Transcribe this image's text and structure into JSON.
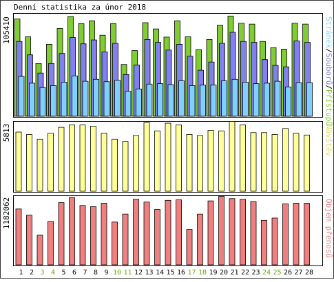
{
  "title": "Denní statistika za únor 2018",
  "colors": {
    "hits": "#80cc33",
    "files": "#8080f0",
    "pages": "#80d0ff",
    "visits": "#ffff99",
    "kbytes": "#f08080",
    "weekend_label": "#66aa00",
    "weekday_label": "#000000"
  },
  "legend": {
    "top_hits": "Přístupů",
    "top_files": "Souborů",
    "top_pages": "Stránek",
    "top_sep": "/",
    "mid": "Návštěv",
    "bottom": "Objem přenosů"
  },
  "axes": {
    "top_max_label": "105410",
    "mid_max_label": "5813",
    "bottom_max_label": "1182062"
  },
  "chart_data": {
    "type": "bar",
    "title": "Denní statistika za únor 2018",
    "categories": [
      "1",
      "2",
      "3",
      "4",
      "5",
      "6",
      "7",
      "8",
      "9",
      "10",
      "11",
      "12",
      "13",
      "14",
      "15",
      "16",
      "17",
      "18",
      "19",
      "20",
      "21",
      "22",
      "23",
      "24",
      "25",
      "26",
      "27",
      "28"
    ],
    "weekend_days": [
      "3",
      "4",
      "10",
      "11",
      "17",
      "18",
      "24",
      "25"
    ],
    "panels": [
      {
        "name": "top",
        "ymax": 105410,
        "series": [
          {
            "name": "Přístupů",
            "color": "#80cc33",
            "values": [
              101500,
              83000,
              55000,
              75000,
              91500,
              104000,
              96500,
              99500,
              84500,
              96500,
              54000,
              68500,
              97500,
              91000,
              82500,
              99500,
              83000,
              69500,
              80000,
              95000,
              104500,
              97000,
              96000,
              78000,
              71500,
              70000,
              97000,
              96000
            ]
          },
          {
            "name": "Souborů",
            "color": "#8080f0",
            "values": [
              78000,
              64000,
              45000,
              55000,
              65500,
              82000,
              75500,
              79500,
              67000,
              76000,
              43500,
              53500,
              80000,
              77000,
              69000,
              75000,
              62500,
              48000,
              56500,
              76000,
              87500,
              78000,
              77000,
              59000,
              53000,
              51500,
              78500,
              77000
            ]
          },
          {
            "name": "Stránek",
            "color": "#80d0ff",
            "values": [
              41500,
              34500,
              30000,
              32000,
              35500,
              42000,
              36500,
              38500,
              36000,
              37500,
              26000,
              28500,
              33500,
              34000,
              33000,
              37000,
              32000,
              32500,
              32500,
              37000,
              38500,
              35500,
              34000,
              34500,
              36500,
              30500,
              35000,
              35000
            ]
          }
        ]
      },
      {
        "name": "mid",
        "ymax": 5813,
        "series": [
          {
            "name": "Návštěv",
            "color": "#ffff99",
            "values": [
              5000,
              4800,
              4400,
              4900,
              5400,
              5600,
              5600,
              5500,
              4900,
              4400,
              4200,
              4700,
              5800,
              5100,
              5750,
              5600,
              4800,
              4700,
              5150,
              5100,
              5900,
              5600,
              4950,
              4950,
              4800,
              5300,
              4900,
              4750
            ]
          }
        ]
      },
      {
        "name": "bottom",
        "ymax": 1182062,
        "series": [
          {
            "name": "Objem přenosů",
            "color": "#f08080",
            "values": [
              980000,
              870000,
              520000,
              760000,
              1090000,
              1180000,
              1040000,
              1020000,
              1080000,
              750000,
              890000,
              1150000,
              1100000,
              970000,
              1130000,
              1140000,
              620000,
              890000,
              1120000,
              1200000,
              1160000,
              1150000,
              1110000,
              780000,
              820000,
              1070000,
              1080000,
              1080000
            ]
          }
        ]
      }
    ]
  }
}
